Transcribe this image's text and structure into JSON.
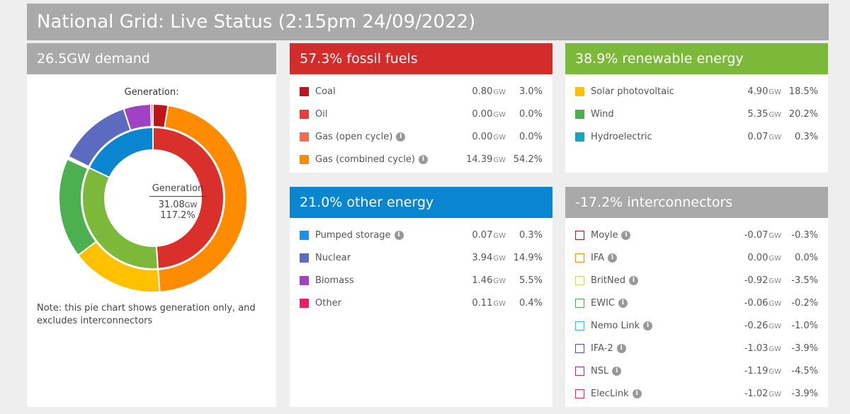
{
  "title": "National Grid: Live Status (2:15pm 24/09/2022)",
  "demand": {
    "header": "26.5GW demand",
    "chart_label": "Generation:",
    "center_title": "Generation",
    "center_value": "31.08",
    "center_unit": "GW",
    "center_pct": "117.2%",
    "note": "Note: this pie chart shows generation only, and excludes interconnectors"
  },
  "fossil": {
    "header": "57.3% fossil fuels",
    "color": "#d42b2b",
    "items": [
      {
        "label": "Coal",
        "gw": "0.80",
        "unit": "GW",
        "pct": "3.0%",
        "color": "#c0141b",
        "info": false
      },
      {
        "label": "Oil",
        "gw": "0.00",
        "unit": "GW",
        "pct": "0.0%",
        "color": "#ee3a3a",
        "info": false
      },
      {
        "label": "Gas (open cycle)",
        "gw": "0.00",
        "unit": "GW",
        "pct": "0.0%",
        "color": "#f36b4a",
        "info": true
      },
      {
        "label": "Gas (combined cycle)",
        "gw": "14.39",
        "unit": "GW",
        "pct": "54.2%",
        "color": "#ff8c00",
        "info": true
      }
    ]
  },
  "renewable": {
    "header": "38.9% renewable energy",
    "color": "#7cb83a",
    "items": [
      {
        "label": "Solar photovoltaic",
        "gw": "4.90",
        "unit": "GW",
        "pct": "18.5%",
        "color": "#ffc000",
        "info": false
      },
      {
        "label": "Wind",
        "gw": "5.35",
        "unit": "GW",
        "pct": "20.2%",
        "color": "#4caf50",
        "info": false
      },
      {
        "label": "Hydroelectric",
        "gw": "0.07",
        "unit": "GW",
        "pct": "0.3%",
        "color": "#17a6bf",
        "info": false
      }
    ]
  },
  "other": {
    "header": "21.0% other energy",
    "color": "#0a86d0",
    "items": [
      {
        "label": "Pumped storage",
        "gw": "0.07",
        "unit": "GW",
        "pct": "0.3%",
        "color": "#1e90e8",
        "info": true
      },
      {
        "label": "Nuclear",
        "gw": "3.94",
        "unit": "GW",
        "pct": "14.9%",
        "color": "#5c6bc0",
        "info": false
      },
      {
        "label": "Biomass",
        "gw": "1.46",
        "unit": "GW",
        "pct": "5.5%",
        "color": "#a142c4",
        "info": false
      },
      {
        "label": "Other",
        "gw": "0.11",
        "unit": "GW",
        "pct": "0.4%",
        "color": "#e91e63",
        "info": false
      }
    ]
  },
  "interconnectors": {
    "header": "-17.2% interconnectors",
    "items": [
      {
        "label": "Moyle",
        "gw": "-0.07",
        "unit": "GW",
        "pct": "-0.3%",
        "color": "#c0141b",
        "info": true
      },
      {
        "label": "IFA",
        "gw": "0.00",
        "unit": "GW",
        "pct": "0.0%",
        "color": "#ff8c00",
        "info": true
      },
      {
        "label": "BritNed",
        "gw": "-0.92",
        "unit": "GW",
        "pct": "-3.5%",
        "color": "#c6e05a",
        "info": true
      },
      {
        "label": "EWIC",
        "gw": "-0.06",
        "unit": "GW",
        "pct": "-0.2%",
        "color": "#4caf50",
        "info": true
      },
      {
        "label": "Nemo Link",
        "gw": "-0.26",
        "unit": "GW",
        "pct": "-1.0%",
        "color": "#26c6da",
        "info": true
      },
      {
        "label": "IFA-2",
        "gw": "-1.03",
        "unit": "GW",
        "pct": "-3.9%",
        "color": "#3f51b5",
        "info": true
      },
      {
        "label": "NSL",
        "gw": "-1.19",
        "unit": "GW",
        "pct": "-4.5%",
        "color": "#9c27b0",
        "info": true
      },
      {
        "label": "ElecLink",
        "gw": "-1.02",
        "unit": "GW",
        "pct": "-3.9%",
        "color": "#e91e63",
        "info": true
      }
    ]
  },
  "chart_data": {
    "type": "pie",
    "title": "Generation:",
    "inner_ring": [
      {
        "name": "Fossil fuels",
        "value": 57.3,
        "color": "#d9302b"
      },
      {
        "name": "Renewable energy",
        "value": 38.9,
        "color": "#7cb83a"
      },
      {
        "name": "Other energy",
        "value": 21.0,
        "color": "#0a86d0"
      }
    ],
    "outer_ring": [
      {
        "name": "Coal",
        "value": 0.8,
        "color": "#c0141b"
      },
      {
        "name": "Gas (combined cycle)",
        "value": 14.39,
        "color": "#ff8c00"
      },
      {
        "name": "Solar photovoltaic",
        "value": 4.9,
        "color": "#ffc000"
      },
      {
        "name": "Wind",
        "value": 5.35,
        "color": "#4caf50"
      },
      {
        "name": "Hydroelectric",
        "value": 0.07,
        "color": "#17a6bf"
      },
      {
        "name": "Pumped storage",
        "value": 0.07,
        "color": "#1e90e8"
      },
      {
        "name": "Nuclear",
        "value": 3.94,
        "color": "#5c6bc0"
      },
      {
        "name": "Biomass",
        "value": 1.46,
        "color": "#a142c4"
      },
      {
        "name": "Other",
        "value": 0.11,
        "color": "#e91e63"
      }
    ]
  }
}
